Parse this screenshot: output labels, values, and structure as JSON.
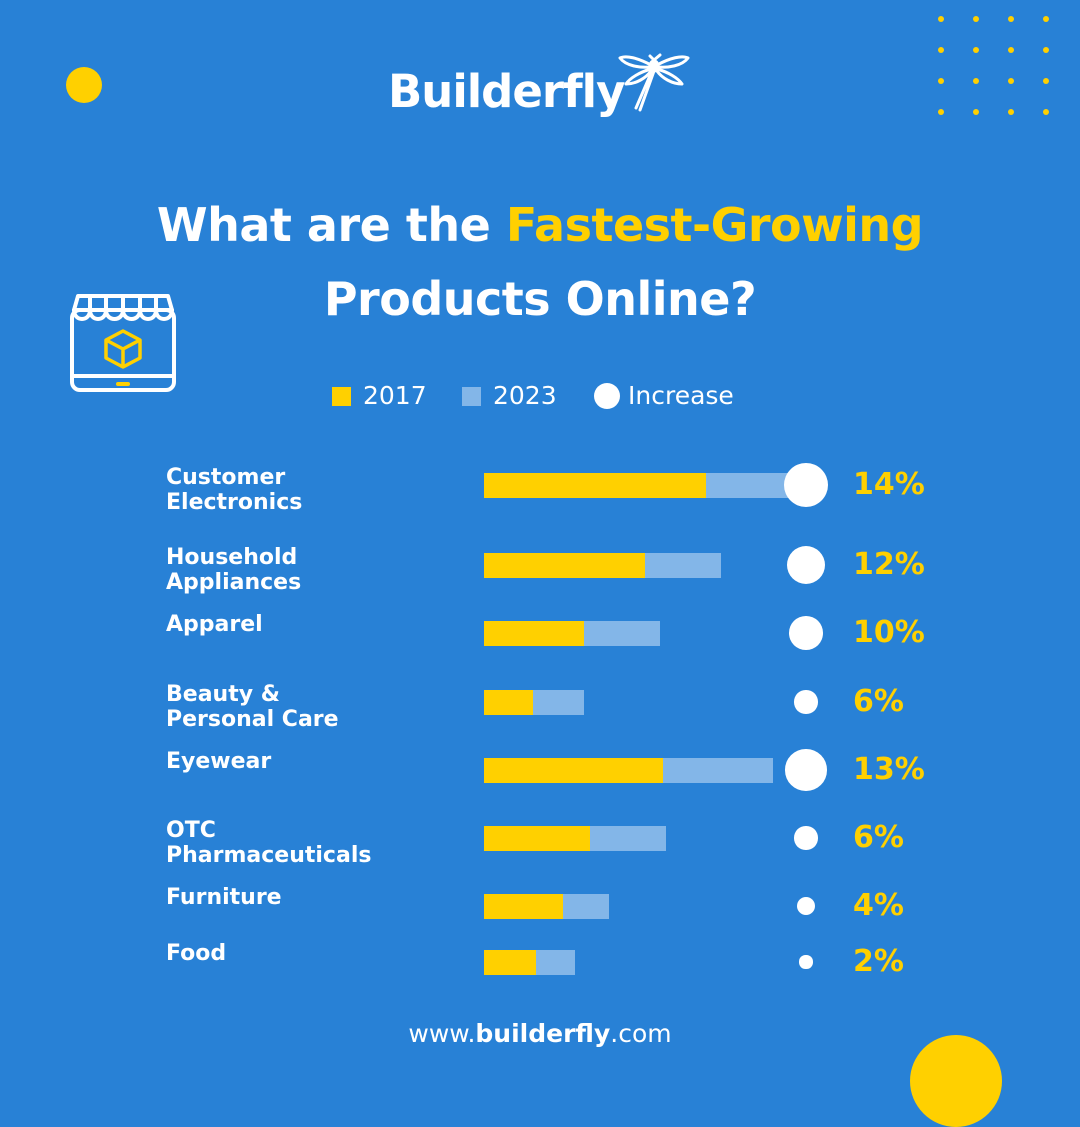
{
  "brand": {
    "logo_text": "Builderfly"
  },
  "title": {
    "line1_prefix": "What are the ",
    "line1_highlight": "Fastest-Growing",
    "line2": "Products Online?"
  },
  "legend": {
    "item1": "2017",
    "item2": "2023",
    "item3": "Increase"
  },
  "colors": {
    "background": "#2881D6",
    "accent": "#FFD000",
    "series_2023": "#83B6E8",
    "increase": "#FFFFFF"
  },
  "icons": {
    "logo_mark": "dragonfly-icon",
    "store": "online-store-icon"
  },
  "chart_data": {
    "type": "bar",
    "orientation": "horizontal",
    "stacked": true,
    "categories": [
      [
        "Customer",
        "Electronics"
      ],
      [
        "Household",
        "Appliances"
      ],
      [
        "Apparel"
      ],
      [
        "Beauty &",
        "Personal Care"
      ],
      [
        "Eyewear"
      ],
      [
        "OTC",
        "Pharmaceuticals"
      ],
      [
        "Furniture"
      ],
      [
        "Food"
      ]
    ],
    "series": [
      {
        "name": "2017",
        "values": [
          7.3,
          5.3,
          3.3,
          1.6,
          5.9,
          3.5,
          2.6,
          1.7
        ]
      },
      {
        "name": "2023",
        "values": [
          3.0,
          2.5,
          2.5,
          1.7,
          3.6,
          2.5,
          1.5,
          1.3
        ]
      }
    ],
    "increase": {
      "name": "Increase",
      "values": [
        14,
        12,
        10,
        6,
        13,
        6,
        4,
        2
      ],
      "labels": [
        "14%",
        "12%",
        "10%",
        "6%",
        "13%",
        "6%",
        "4%",
        "2%"
      ]
    },
    "legend_position": "top"
  },
  "footer": {
    "prefix": "www.",
    "bold": "builderfly",
    "suffix": ".com"
  }
}
